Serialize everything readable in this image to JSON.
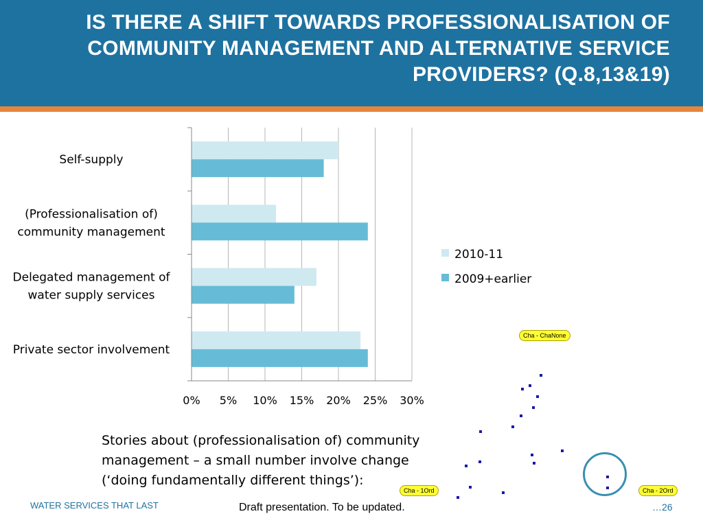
{
  "slide": {
    "title": "IS THERE A SHIFT TOWARDS PROFESSIONALISATION OF COMMUNITY MANAGEMENT AND ALTERNATIVE SERVICE PROVIDERS? (Q.8,13&19)",
    "stories_text": "Stories about (professionalisation of) community management – a small number involve change (‘doing fundamentally different things’):",
    "footer_left": "WATER SERVICES THAT LAST",
    "footer_center": "Draft presentation. To be updated.",
    "footer_right": "…26"
  },
  "tags": {
    "tag1": "Cha - ChaNone",
    "tag2": "Cha - 1Ord",
    "tag3": "Cha - 2Ord"
  },
  "colors": {
    "header": "#1e72a0",
    "stripe": "#e8853d",
    "series_2010": "#cfe9f1",
    "series_2009": "#66bcd6"
  },
  "chart_data": {
    "type": "bar",
    "orientation": "horizontal",
    "categories": [
      "Self-supply",
      "(Professionalisation of) community management",
      "Delegated management of water supply services",
      "Private sector involvement"
    ],
    "category_lines": [
      [
        "Self-supply"
      ],
      [
        "(Professionalisation of)",
        "community management"
      ],
      [
        "Delegated management of",
        "water supply services"
      ],
      [
        "Private sector involvement"
      ]
    ],
    "series": [
      {
        "name": "2010-11",
        "values": [
          20,
          11.5,
          17,
          23
        ],
        "color": "#cfe9f1"
      },
      {
        "name": "2009+earlier",
        "values": [
          18,
          24,
          14,
          24
        ],
        "color": "#66bcd6"
      }
    ],
    "ticks": [
      "0%",
      "5%",
      "10%",
      "15%",
      "20%",
      "25%",
      "30%"
    ],
    "xlim": [
      0,
      30
    ],
    "x_unit": "%",
    "grid": true,
    "legend_position": "right"
  }
}
